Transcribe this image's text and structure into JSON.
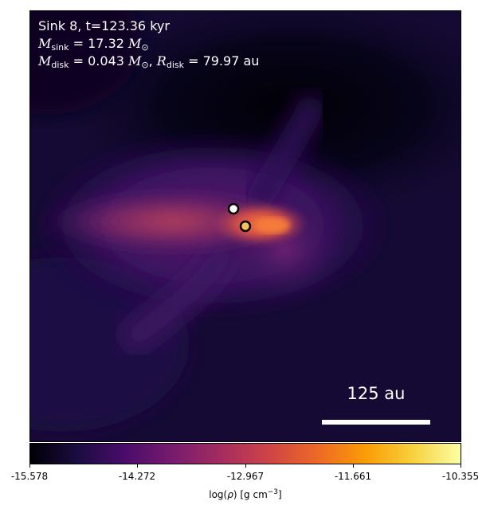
{
  "panel": {
    "title": "Sink 8, t=123.36 kyr",
    "msink_value": "= 17.32",
    "mdisk_value": "= 0.043",
    "rdisk_value": "= 79.97 au",
    "scalebar_label": "125 au"
  },
  "colorbar": {
    "ticks": [
      "-15.578",
      "-14.272",
      "-12.967",
      "-11.661",
      "-10.355"
    ],
    "label_prefix": "log(",
    "label_mid": "ρ",
    "label_units": ") [g cm",
    "label_exp": "−3",
    "label_end": "]",
    "colormap": "inferno"
  }
}
